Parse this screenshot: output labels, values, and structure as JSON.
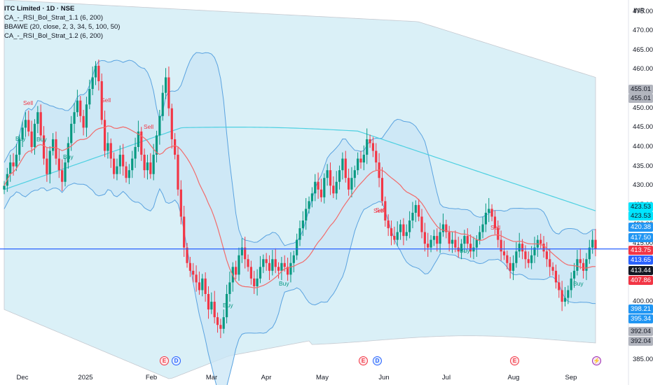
{
  "header": {
    "title": "ITC Limited · 1D · NSE",
    "indicators": [
      "CA_-_RSI_Bol_Strat_1.1 (6, 200)",
      "BBAWE (20, close, 2, 3, 34, 5, 100, 50)",
      "CA_-_RSI_Bol_Strat_1.2 (6, 200)"
    ]
  },
  "axis": {
    "unit": "INR",
    "y_ticks": [
      "475.00",
      "470.00",
      "465.00",
      "460.00",
      "455.00",
      "450.00",
      "445.00",
      "440.00",
      "435.00",
      "430.00",
      "425.00",
      "420.00",
      "415.00",
      "410.00",
      "405.00",
      "400.00",
      "395.00",
      "390.00",
      "385.00"
    ],
    "x_ticks": [
      "Dec",
      "2025",
      "Feb",
      "Mar",
      "Apr",
      "May",
      "Jun",
      "Jul",
      "Aug",
      "Sep"
    ]
  },
  "price_tags": [
    {
      "label": "455.01",
      "bg": "#b2b5be",
      "fg": "#131722"
    },
    {
      "label": "455.01",
      "bg": "#b2b5be",
      "fg": "#131722"
    },
    {
      "label": "423.53",
      "bg": "#00e5ff",
      "fg": "#131722"
    },
    {
      "label": "423.53",
      "bg": "#00e5ff",
      "fg": "#131722"
    },
    {
      "label": "420.38",
      "bg": "#2196f3",
      "fg": "#ffffff"
    },
    {
      "label": "417.50",
      "bg": "#2196f3",
      "fg": "#ffffff"
    },
    {
      "label": "413.75",
      "bg": "#f23645",
      "fg": "#ffffff"
    },
    {
      "label": "413.65",
      "bg": "#2962ff",
      "fg": "#ffffff"
    },
    {
      "label": "413.44",
      "bg": "#131722",
      "fg": "#ffffff"
    },
    {
      "label": "407.86",
      "bg": "#f23645",
      "fg": "#ffffff"
    },
    {
      "label": "398.21",
      "bg": "#2196f3",
      "fg": "#ffffff"
    },
    {
      "label": "395.34",
      "bg": "#2196f3",
      "fg": "#ffffff"
    },
    {
      "label": "392.04",
      "bg": "#b2b5be",
      "fg": "#131722"
    },
    {
      "label": "392.04",
      "bg": "#b2b5be",
      "fg": "#131722"
    }
  ],
  "events": [
    {
      "type": "e",
      "label": "E"
    },
    {
      "type": "d",
      "label": "D"
    },
    {
      "type": "e",
      "label": "E"
    },
    {
      "type": "d",
      "label": "D"
    },
    {
      "type": "e",
      "label": "E"
    },
    {
      "type": "s",
      "label": "⚡"
    }
  ],
  "signals": [
    {
      "label": "Sell",
      "color": "#f23645"
    },
    {
      "label": "Buy",
      "color": "#089981"
    },
    {
      "label": "Buy",
      "color": "#089981"
    },
    {
      "label": "Sell",
      "color": "#f23645"
    },
    {
      "label": "Sell",
      "color": "#f23645"
    },
    {
      "label": "Sell",
      "color": "#f23645"
    },
    {
      "label": "Buy",
      "color": "#089981"
    },
    {
      "label": "Buy",
      "color": "#089981"
    },
    {
      "label": "Sell",
      "color": "#f23645"
    },
    {
      "label": "Buy",
      "color": "#089981"
    },
    {
      "label": "Sell",
      "color": "#f23645"
    },
    {
      "label": "Buy",
      "color": "#089981"
    },
    {
      "label": "Buy",
      "color": "#089981"
    }
  ],
  "colors": {
    "up": "#089981",
    "down": "#f23645",
    "ma20": "#f26b6b",
    "ma200": "#4dd0e1",
    "bb_line": "#5aa3e0",
    "bb_fill": "#c9e6f5",
    "outer_fill": "#daf0f7",
    "hline": "#2962ff"
  },
  "chart_data": {
    "type": "candlestick",
    "symbol": "ITC Limited",
    "interval": "1D",
    "ylim": [
      383,
      478
    ],
    "horizontal_line": 413.65,
    "last_close": 413.75,
    "closes": [
      430,
      433,
      436,
      435,
      438,
      442,
      445,
      447,
      444,
      440,
      446,
      449,
      443,
      437,
      433,
      439,
      442,
      437,
      434,
      431,
      436,
      441,
      446,
      449,
      452,
      448,
      445,
      451,
      455,
      458,
      461,
      457,
      447,
      439,
      441,
      437,
      433,
      435,
      438,
      435,
      432,
      434,
      437,
      440,
      444,
      438,
      434,
      436,
      433,
      438,
      443,
      448,
      454,
      458,
      450,
      442,
      438,
      429,
      422,
      414,
      410,
      408,
      407,
      405,
      403,
      406,
      402,
      398,
      400,
      396,
      394,
      393,
      396,
      402,
      405,
      409,
      407,
      412,
      414,
      411,
      409,
      406,
      404,
      406,
      409,
      411,
      410,
      408,
      411,
      409,
      408,
      410,
      409,
      407,
      410,
      412,
      416,
      419,
      421,
      424,
      426,
      428,
      431,
      429,
      427,
      432,
      434,
      430,
      428,
      431,
      434,
      437,
      432,
      429,
      432,
      434,
      437,
      436,
      438,
      442,
      441,
      439,
      436,
      432,
      426,
      421,
      419,
      417,
      416,
      418,
      420,
      417,
      418,
      421,
      423,
      425,
      422,
      418,
      415,
      414,
      416,
      417,
      415,
      418,
      420,
      418,
      415,
      416,
      414,
      413,
      415,
      417,
      415,
      413,
      414,
      416,
      418,
      420,
      423,
      424,
      422,
      419,
      416,
      413,
      412,
      410,
      408,
      410,
      413,
      415,
      413,
      411,
      410,
      412,
      414,
      416,
      415,
      413,
      411,
      409,
      408,
      405,
      403,
      400,
      401,
      403,
      406,
      408,
      411,
      410,
      408,
      411,
      414,
      416,
      413.75
    ]
  }
}
